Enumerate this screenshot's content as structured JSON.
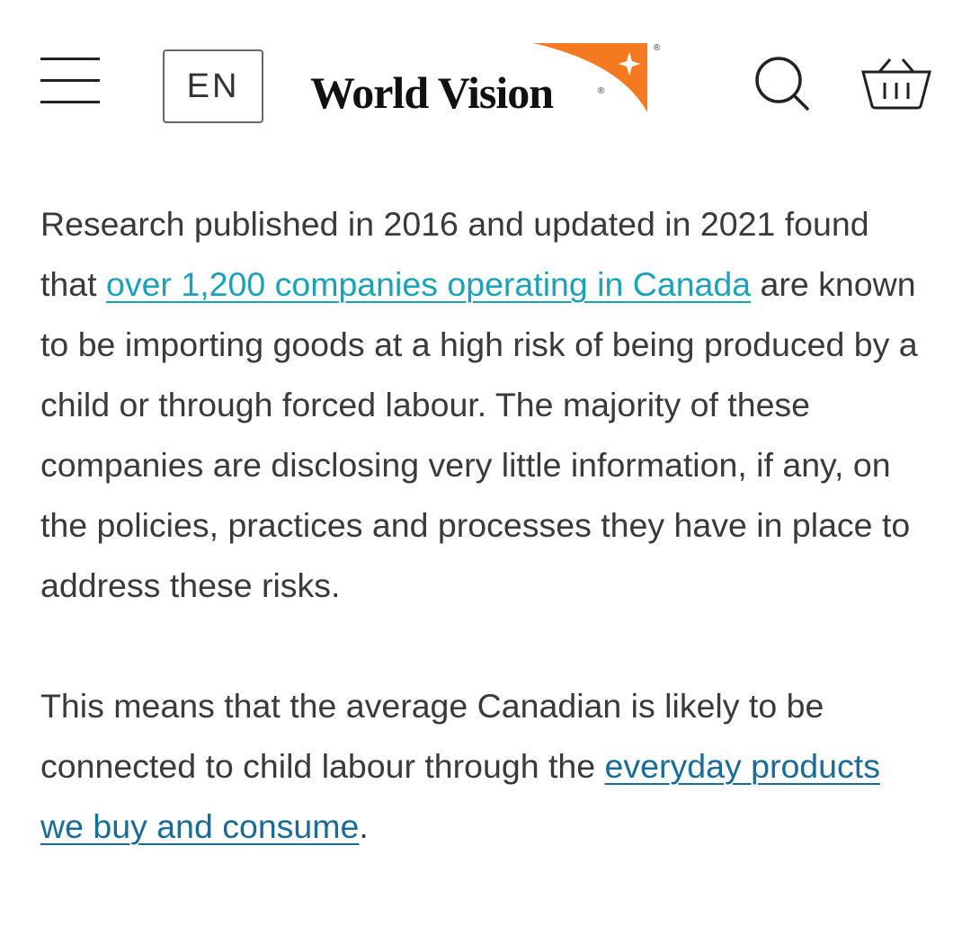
{
  "header": {
    "language": "EN",
    "logo": "World Vision",
    "trademark": "®"
  },
  "paragraphs": [
    {
      "before": "Research published in 2016 and updated in 2021 found that ",
      "link": "over 1,200 companies operating in Canada",
      "after": " are known to be importing goods at a high risk of being produced by a child or through forced labour. The majority of these companies are disclosing very little information, if any, on the policies, practices and processes they have in place to address these risks."
    },
    {
      "before": "This means that the average Canadian is likely to be connected to child labour through the ",
      "link": "everyday products we buy and consume",
      "after": "."
    }
  ]
}
